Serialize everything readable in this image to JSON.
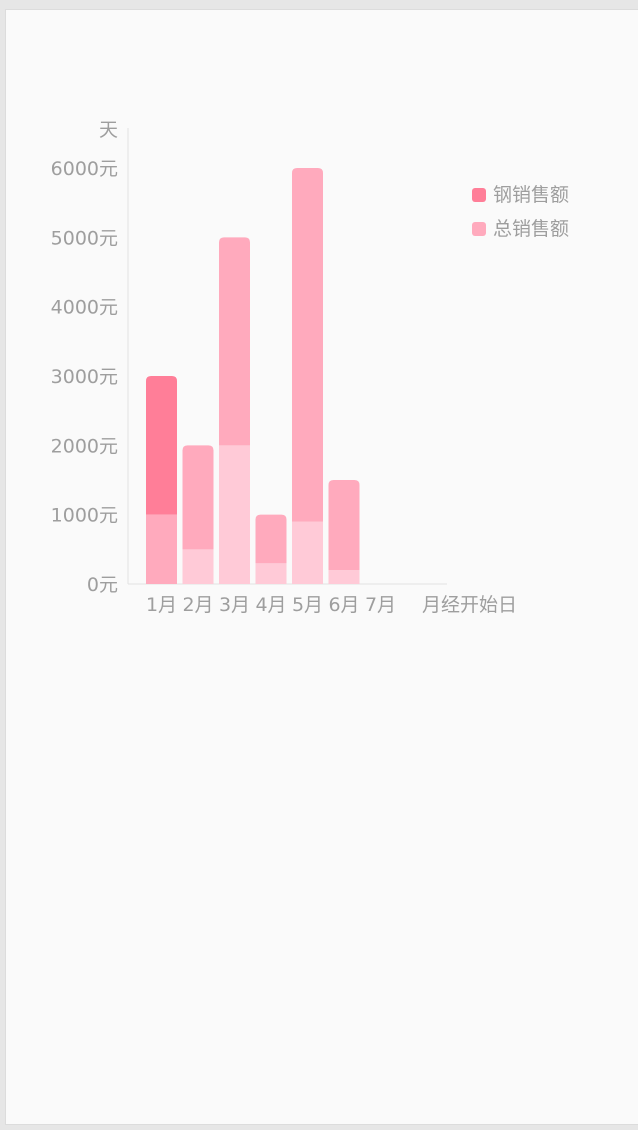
{
  "chart_data": {
    "type": "bar",
    "stacked": true,
    "y_unit_label": "天",
    "x_unit_label": "月经开始日",
    "categories": [
      "1月",
      "2月",
      "3月",
      "4月",
      "5月",
      "6月",
      "7月"
    ],
    "y_ticks": [
      "0元",
      "1000元",
      "2000元",
      "3000元",
      "4000元",
      "5000元",
      "6000元"
    ],
    "ylim": [
      0,
      6500
    ],
    "series": [
      {
        "name": "",
        "color": "#ffcad7",
        "values": [
          1000,
          500,
          2000,
          300,
          900,
          200,
          0
        ]
      },
      {
        "name": "钢销售额",
        "color": "#ff7e98",
        "values": [
          2000,
          null,
          null,
          null,
          null,
          null,
          null
        ]
      },
      {
        "name": "总销售额",
        "color": "#ffaabd",
        "values": [
          null,
          1500,
          3000,
          700,
          5100,
          1300,
          null
        ]
      }
    ],
    "first_bar_base_color": "#ffaabd",
    "legend": [
      {
        "label": "钢销售额",
        "color": "#ff7e98"
      },
      {
        "label": "总销售额",
        "color": "#ffaabd"
      }
    ],
    "legend_position": "top-right",
    "grid": false
  }
}
